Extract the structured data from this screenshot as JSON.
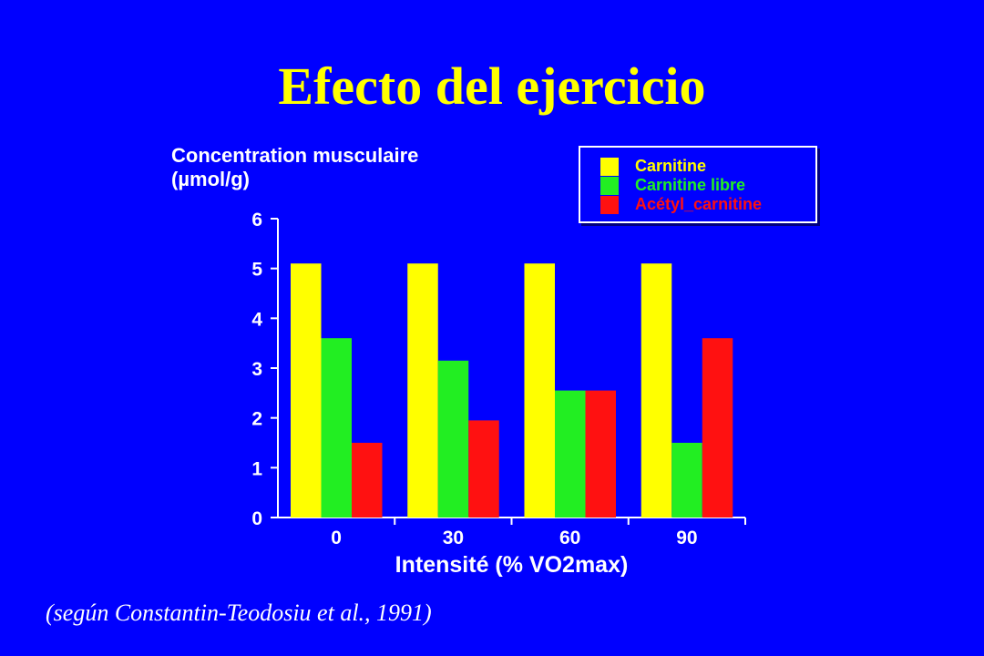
{
  "slide": {
    "title": "Efecto del ejercicio",
    "source": "(según Constantin-Teodosiu et al., 1991)"
  },
  "chart_data": {
    "type": "bar",
    "ylabel_lines": [
      "Concentration musculaire",
      "(µmol/g)"
    ],
    "xlabel": "Intensité (% VO2max)",
    "categories": [
      "0",
      "30",
      "60",
      "90"
    ],
    "series": [
      {
        "name": "Carnitine",
        "color": "#ffff00",
        "values": [
          5.1,
          5.1,
          5.1,
          5.1
        ]
      },
      {
        "name": "Carnitine libre",
        "color": "#22ee22",
        "values": [
          3.6,
          3.15,
          2.55,
          1.5
        ]
      },
      {
        "name": "Acétyl_carnitine",
        "color": "#ff1111",
        "values": [
          1.5,
          1.95,
          2.55,
          3.6
        ]
      }
    ],
    "yticks": [
      "0",
      "1",
      "2",
      "3",
      "4",
      "5",
      "6"
    ],
    "ylim": [
      0,
      6
    ],
    "grid": false,
    "legend_position": "top-right"
  }
}
